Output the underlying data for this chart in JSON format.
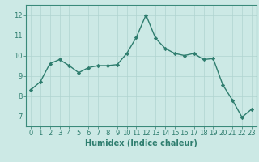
{
  "x": [
    0,
    1,
    2,
    3,
    4,
    5,
    6,
    7,
    8,
    9,
    10,
    11,
    12,
    13,
    14,
    15,
    16,
    17,
    18,
    19,
    20,
    21,
    22,
    23
  ],
  "y": [
    8.3,
    8.7,
    9.6,
    9.8,
    9.5,
    9.15,
    9.4,
    9.5,
    9.5,
    9.55,
    10.1,
    10.9,
    12.0,
    10.85,
    10.35,
    10.1,
    10.0,
    10.1,
    9.8,
    9.85,
    8.55,
    7.8,
    6.95,
    7.35
  ],
  "line_color": "#2e7d6e",
  "marker": "D",
  "marker_size": 2.2,
  "line_width": 1.0,
  "xlabel": "Humidex (Indice chaleur)",
  "xlim": [
    -0.5,
    23.5
  ],
  "ylim": [
    6.5,
    12.5
  ],
  "yticks": [
    7,
    8,
    9,
    10,
    11,
    12
  ],
  "xticks": [
    0,
    1,
    2,
    3,
    4,
    5,
    6,
    7,
    8,
    9,
    10,
    11,
    12,
    13,
    14,
    15,
    16,
    17,
    18,
    19,
    20,
    21,
    22,
    23
  ],
  "bg_color": "#cce9e5",
  "grid_color": "#b0d4d0",
  "axis_color": "#3a8a7a",
  "tick_color": "#2e7d6e",
  "label_color": "#2e7d6e",
  "xlabel_fontsize": 7,
  "tick_fontsize": 6
}
